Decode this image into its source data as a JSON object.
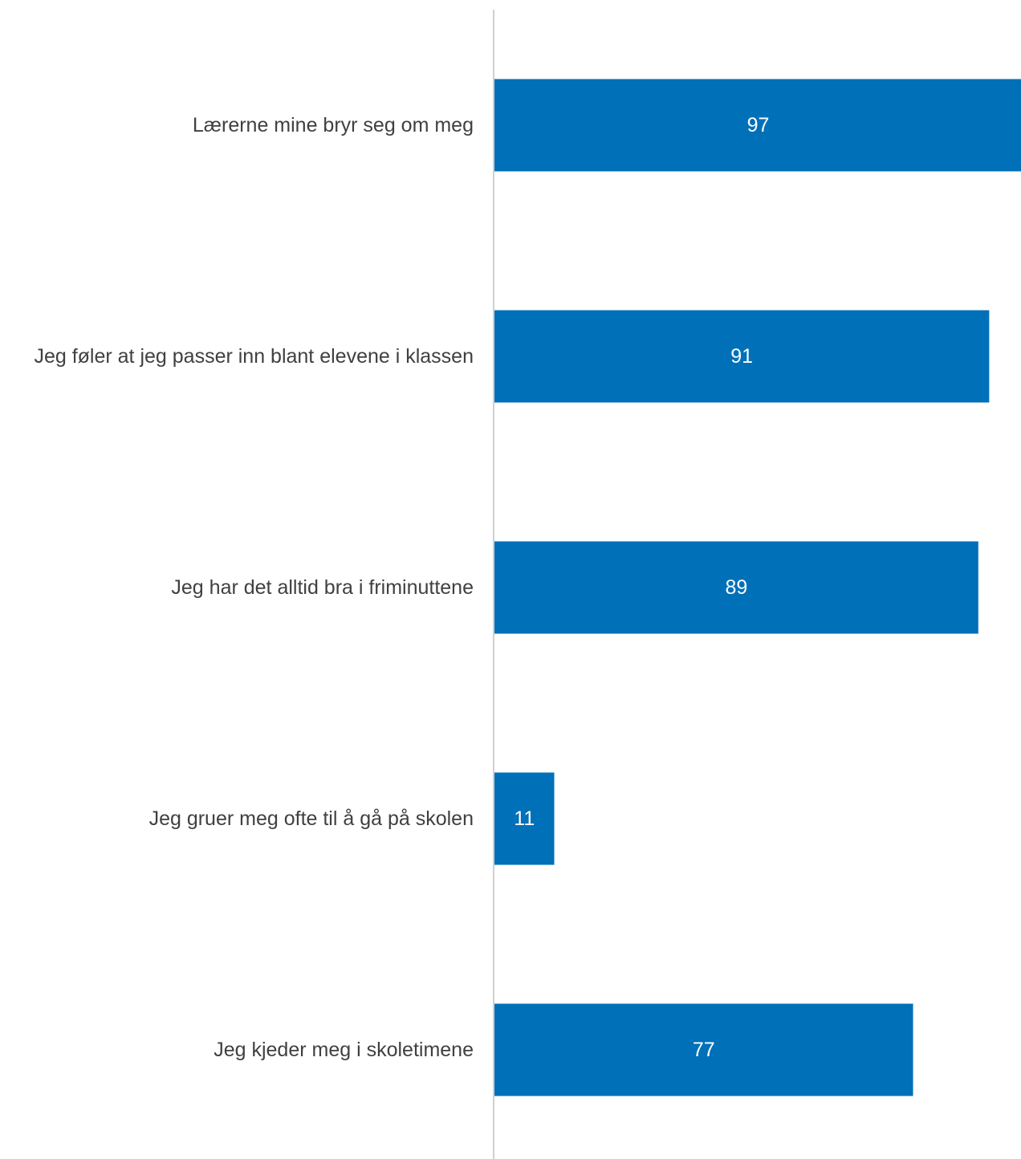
{
  "chart_data": {
    "type": "bar",
    "orientation": "horizontal",
    "categories": [
      "Lærerne mine bryr seg om meg",
      "Jeg føler at jeg passer inn blant elevene i klassen",
      "Jeg har det alltid bra i friminuttene",
      "Jeg gruer meg ofte til å gå på skolen",
      "Jeg kjeder meg i skoletimene"
    ],
    "values": [
      97,
      91,
      89,
      11,
      77
    ],
    "xlim": [
      0,
      97
    ],
    "grid": false,
    "legend": "none",
    "colors": {
      "bar": "#0070b8",
      "axis": "#d0d0d0",
      "label_text": "#404040",
      "value_text": "#ffffff"
    }
  }
}
